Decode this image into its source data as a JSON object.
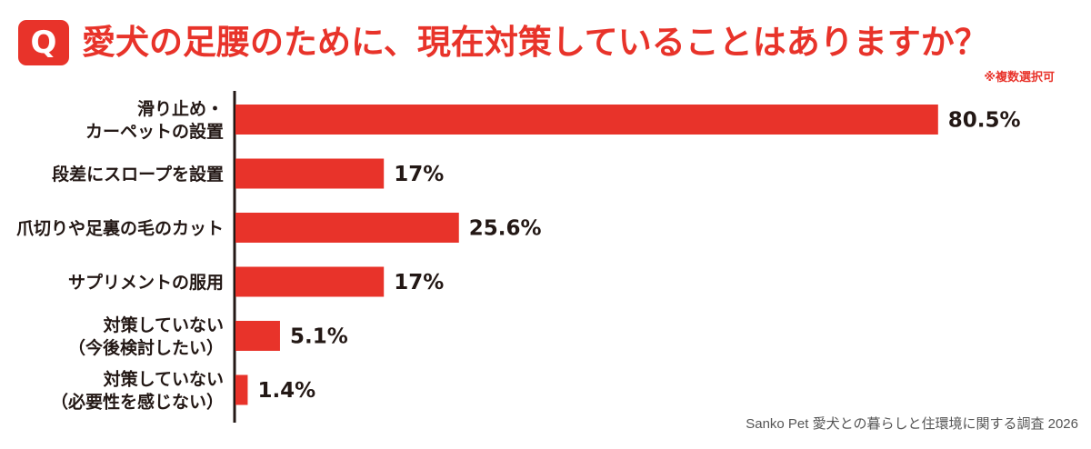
{
  "header": {
    "badge": "Q",
    "title": "愛犬の足腰のために、現在対策していることはありますか？",
    "note": "※複数選択可"
  },
  "source": "Sanko Pet 愛犬との暮らしと住環境に関する調査 2026",
  "colors": {
    "bar": "#e8332a",
    "axis": "#231815"
  },
  "chart_data": {
    "type": "bar",
    "orientation": "horizontal",
    "title": "愛犬の足腰のために、現在対策していることはありますか？",
    "categories": [
      [
        "滑り止め・",
        "カーペットの設置"
      ],
      [
        "段差にスロープを設置"
      ],
      [
        "爪切りや足裏の毛のカット"
      ],
      [
        "サプリメントの服用"
      ],
      [
        "対策していない",
        "（今後検討したい）"
      ],
      [
        "対策していない",
        "（必要性を感じない）"
      ]
    ],
    "values": [
      80.5,
      17,
      25.6,
      17,
      5.1,
      1.4
    ],
    "value_labels": [
      "80.5%",
      "17%",
      "25.6%",
      "17%",
      "5.1%",
      "1.4%"
    ],
    "unit": "%",
    "xlim": [
      0,
      100
    ],
    "grid": false,
    "legend": "none"
  }
}
